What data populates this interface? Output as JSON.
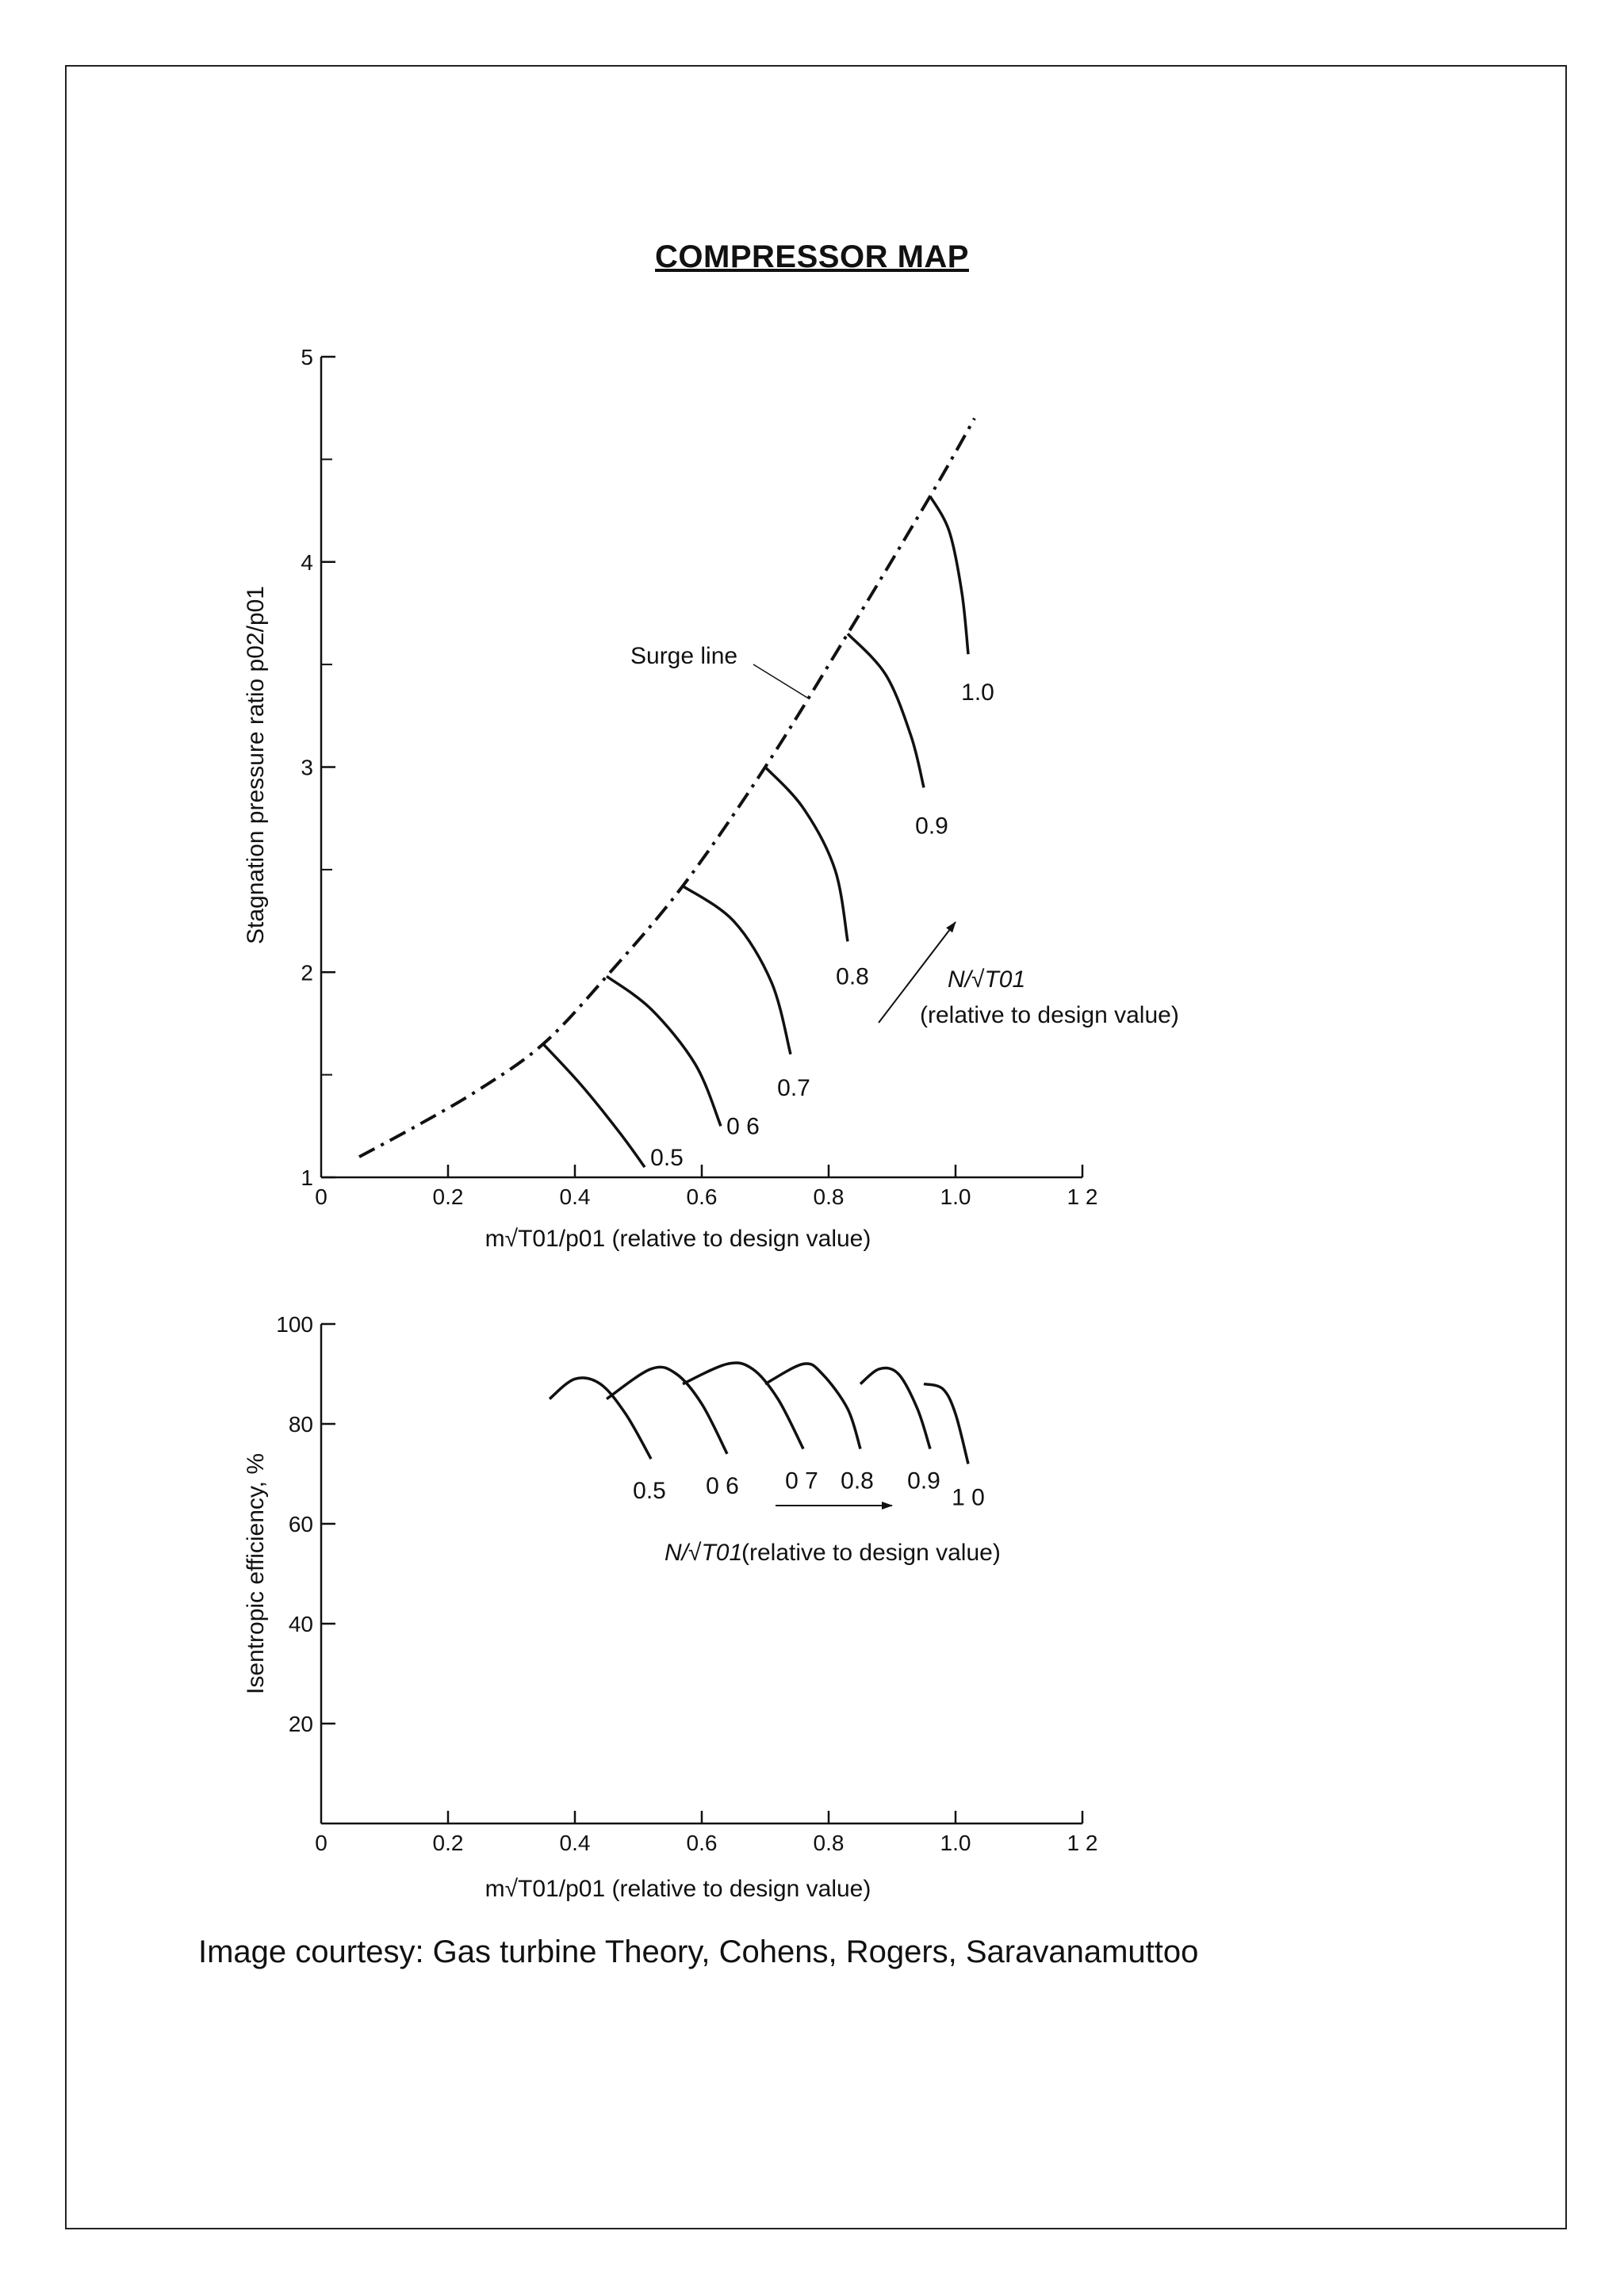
{
  "document": {
    "title": "COMPRESSOR MAP",
    "caption": "Image courtesy: Gas turbine Theory, Cohens, Rogers, Saravanamuttoo"
  },
  "chart_data": [
    {
      "type": "line",
      "xlabel": "m√T01/p01 (relative to design value)",
      "ylabel": "Stagnation pressure ratio p02/p01",
      "xlim": [
        0,
        1.2
      ],
      "ylim": [
        1,
        5
      ],
      "x_ticks": [
        0,
        0.2,
        0.4,
        0.6,
        0.8,
        1.0,
        1.2
      ],
      "x_tick_labels": [
        "0",
        "0.2",
        "0.4",
        "0.6",
        "0.8",
        "1.0",
        "1 2"
      ],
      "y_ticks": [
        1,
        2,
        3,
        4,
        5
      ],
      "y_tick_labels": [
        "1",
        "2",
        "3",
        "4",
        "5"
      ],
      "grid": false,
      "surge_line": {
        "label": "Surge line",
        "x": [
          0.06,
          0.15,
          0.25,
          0.35,
          0.45,
          0.57,
          0.7,
          0.83,
          0.96,
          1.03
        ],
        "y": [
          1.1,
          1.25,
          1.43,
          1.65,
          1.98,
          2.42,
          3.0,
          3.65,
          4.32,
          4.7
        ]
      },
      "speed_annotation": {
        "text": "N/√T01",
        "subtext": "(relative to design value)"
      },
      "series": [
        {
          "name": "0.5",
          "x": [
            0.35,
            0.41,
            0.47,
            0.51
          ],
          "y": [
            1.65,
            1.45,
            1.22,
            1.05
          ]
        },
        {
          "name": "0 6",
          "x": [
            0.45,
            0.52,
            0.59,
            0.63
          ],
          "y": [
            1.98,
            1.82,
            1.55,
            1.25
          ]
        },
        {
          "name": "0.7",
          "x": [
            0.57,
            0.65,
            0.71,
            0.74
          ],
          "y": [
            2.42,
            2.25,
            1.95,
            1.6
          ]
        },
        {
          "name": "0.8",
          "x": [
            0.7,
            0.76,
            0.81,
            0.83
          ],
          "y": [
            3.0,
            2.8,
            2.5,
            2.15
          ]
        },
        {
          "name": "0.9",
          "x": [
            0.83,
            0.89,
            0.93,
            0.95
          ],
          "y": [
            3.65,
            3.45,
            3.15,
            2.9
          ]
        },
        {
          "name": "1.0",
          "x": [
            0.96,
            0.99,
            1.01,
            1.02
          ],
          "y": [
            4.32,
            4.15,
            3.85,
            3.55
          ]
        }
      ]
    },
    {
      "type": "line",
      "xlabel": "m√T01/p01 (relative to design value)",
      "ylabel": "Isentropic efficiency, %",
      "xlim": [
        0,
        1.2
      ],
      "ylim": [
        0,
        100
      ],
      "x_ticks": [
        0,
        0.2,
        0.4,
        0.6,
        0.8,
        1.0,
        1.2
      ],
      "x_tick_labels": [
        "0",
        "0.2",
        "0.4",
        "0.6",
        "0.8",
        "1.0",
        "1 2"
      ],
      "y_ticks": [
        20,
        40,
        60,
        80,
        100
      ],
      "y_tick_labels": [
        "20",
        "40",
        "60",
        "80",
        "100"
      ],
      "grid": false,
      "speed_annotation": {
        "text": "N/√T01",
        "subtext": "(relative to design value)"
      },
      "series": [
        {
          "name": "0.5",
          "x": [
            0.36,
            0.4,
            0.44,
            0.48,
            0.52
          ],
          "y": [
            85,
            89,
            88,
            82,
            73
          ]
        },
        {
          "name": "0 6",
          "x": [
            0.45,
            0.52,
            0.56,
            0.6,
            0.64
          ],
          "y": [
            85,
            91,
            90,
            84,
            74
          ]
        },
        {
          "name": "0 7",
          "x": [
            0.57,
            0.64,
            0.68,
            0.72,
            0.76
          ],
          "y": [
            88,
            92,
            91,
            85,
            75
          ]
        },
        {
          "name": "0.8",
          "x": [
            0.7,
            0.76,
            0.79,
            0.83,
            0.85
          ],
          "y": [
            88,
            92,
            90,
            83,
            75
          ]
        },
        {
          "name": "0.9",
          "x": [
            0.85,
            0.88,
            0.91,
            0.94,
            0.96
          ],
          "y": [
            88,
            91,
            90,
            83,
            75
          ]
        },
        {
          "name": "1 0",
          "x": [
            0.95,
            0.98,
            1.0,
            1.02
          ],
          "y": [
            88,
            87,
            82,
            72
          ]
        }
      ]
    }
  ]
}
